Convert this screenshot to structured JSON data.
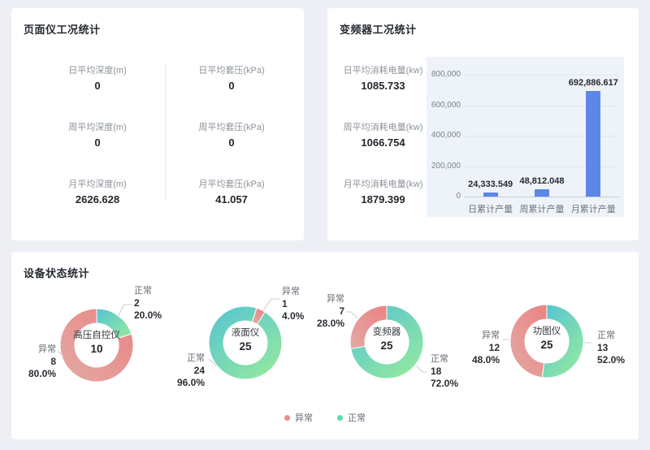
{
  "panels": {
    "gauge": {
      "title": "页面仪工况统计",
      "stats": [
        {
          "label": "日平均深度(m)",
          "value": "0"
        },
        {
          "label": "日平均套压(kPa)",
          "value": "0"
        },
        {
          "label": "周平均深度(m)",
          "value": "0"
        },
        {
          "label": "周平均套压(kPa)",
          "value": "0"
        },
        {
          "label": "月平均深度(m)",
          "value": "2626.628"
        },
        {
          "label": "月平均套压(kPa)",
          "value": "41.057"
        }
      ]
    },
    "inverter": {
      "title": "变频器工况统计",
      "stats": [
        {
          "label": "日平均消耗电量(kw)",
          "value": "1085.733"
        },
        {
          "label": "周平均消耗电量(kw)",
          "value": "1066.754"
        },
        {
          "label": "月平均消耗电量(kw)",
          "value": "1879.399"
        }
      ]
    },
    "device_status": {
      "title": "设备状态统计",
      "legend": [
        {
          "label": "异常",
          "color": "#e88b8b"
        },
        {
          "label": "正常",
          "color": "#5fd8ad"
        }
      ]
    }
  },
  "chart_data": [
    {
      "type": "bar",
      "title": "变频器工况统计",
      "categories": [
        "日累计产量",
        "周累计产量",
        "月累计产量"
      ],
      "values": [
        24333.549,
        48812.048,
        692886.617
      ],
      "value_labels": [
        "24,333.549",
        "48,812.048",
        "692,886.617"
      ],
      "xlabel": "",
      "ylabel": "",
      "ylim": [
        0,
        800000
      ],
      "yticks": [
        "0",
        "200,000",
        "400,000",
        "600,000",
        "800,000"
      ],
      "grid": true,
      "legend_position": "none",
      "bar_color": "#5c87e8",
      "plot_bg": "#eef2f9"
    },
    {
      "type": "pie",
      "name": "高压自控仪",
      "total": "10",
      "slices": [
        {
          "label": "正常",
          "value": 2,
          "pct": "20.0%",
          "status": "normal"
        },
        {
          "label": "异常",
          "value": 8,
          "pct": "80.0%",
          "status": "abnormal"
        }
      ]
    },
    {
      "type": "pie",
      "name": "液面仪",
      "total": "25",
      "slices": [
        {
          "label": "异常",
          "value": 1,
          "pct": "4.0%",
          "status": "abnormal"
        },
        {
          "label": "正常",
          "value": 24,
          "pct": "96.0%",
          "status": "normal"
        }
      ]
    },
    {
      "type": "pie",
      "name": "变频器",
      "total": "25",
      "slices": [
        {
          "label": "正常",
          "value": 18,
          "pct": "72.0%",
          "status": "normal"
        },
        {
          "label": "异常",
          "value": 7,
          "pct": "28.0%",
          "status": "abnormal"
        }
      ]
    },
    {
      "type": "pie",
      "name": "功图仪",
      "total": "25",
      "slices": [
        {
          "label": "正常",
          "value": 13,
          "pct": "52.0%",
          "status": "normal"
        },
        {
          "label": "异常",
          "value": 12,
          "pct": "48.0%",
          "status": "abnormal"
        }
      ]
    }
  ],
  "colors": {
    "normal_gradient": [
      "#54c3d4",
      "#92e8a0"
    ],
    "abnormal_gradient": [
      "#ea8383",
      "#e3aaa4"
    ]
  }
}
